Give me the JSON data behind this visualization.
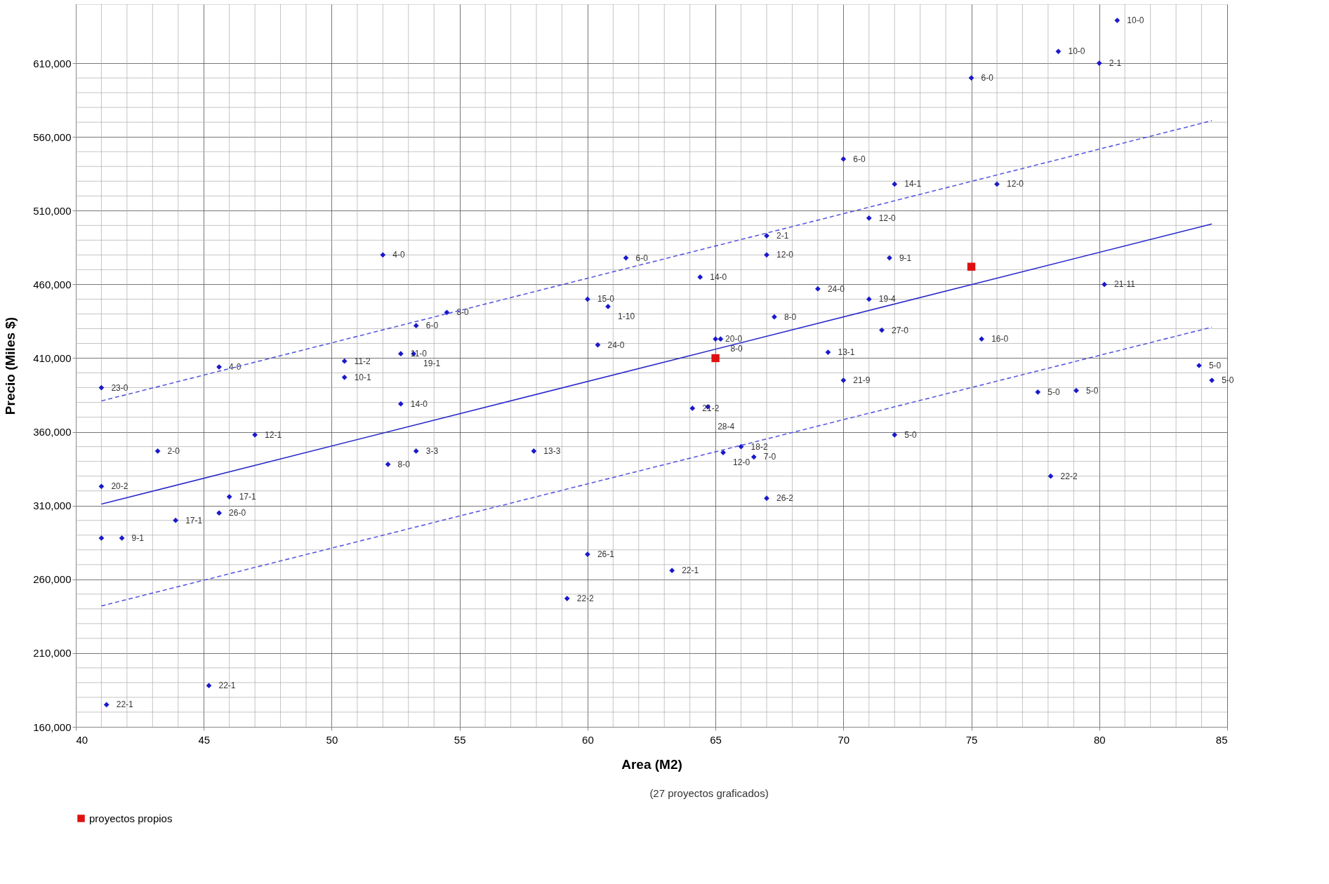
{
  "chart_data": {
    "type": "scatter",
    "xlabel": "Area (M2)",
    "ylabel": "Precio (Miles $)",
    "annotations": [
      "(27 proyectos graficados)"
    ],
    "xlim": [
      40,
      85
    ],
    "xticks": [
      40,
      45,
      50,
      55,
      60,
      65,
      70,
      75,
      80,
      85
    ],
    "ylim": [
      160000,
      650000
    ],
    "yticks": [
      {
        "value": 160000,
        "label": "160,000"
      },
      {
        "value": 210000,
        "label": "210,000"
      },
      {
        "value": 260000,
        "label": "260,000"
      },
      {
        "value": 310000,
        "label": "310,000"
      },
      {
        "value": 360000,
        "label": "360,000"
      },
      {
        "value": 410000,
        "label": "410,000"
      },
      {
        "value": 460000,
        "label": "460,000"
      },
      {
        "value": 510000,
        "label": "510,000"
      },
      {
        "value": 560000,
        "label": "560,000"
      },
      {
        "value": 610000,
        "label": "610,000"
      }
    ],
    "grid": true,
    "legend": "bottom left",
    "series": [
      {
        "type": "scatter",
        "color": "#1a1acc",
        "marker": "diamond",
        "x": [
          80.7,
          78.4,
          80.0,
          75.0,
          70.0,
          72.0,
          76.0,
          71.0,
          67.0,
          67.0,
          52.0,
          61.5,
          71.8,
          64.4,
          69.0,
          80.2,
          60.0,
          71.0,
          60.8,
          54.5,
          67.3,
          53.3,
          71.5,
          65.0,
          65.2,
          75.4,
          60.4,
          52.7,
          53.2,
          69.4,
          50.5,
          45.6,
          83.9,
          50.5,
          84.4,
          70.0,
          41.0,
          77.6,
          79.1,
          52.7,
          64.1,
          64.7,
          47.0,
          72.0,
          43.2,
          53.3,
          57.9,
          66.0,
          65.3,
          66.5,
          52.2,
          78.1,
          41.0,
          46.0,
          67.0,
          45.6,
          43.9,
          41.0,
          41.8,
          60.0,
          63.3,
          59.2,
          45.2,
          41.2
        ],
        "values": [
          639000,
          618000,
          610000,
          600000,
          545000,
          528000,
          528000,
          505000,
          493000,
          480000,
          480000,
          478000,
          478000,
          465000,
          457000,
          460000,
          450000,
          450000,
          445000,
          441000,
          438000,
          432000,
          429000,
          423000,
          423000,
          423000,
          419000,
          413000,
          413000,
          414000,
          408000,
          404000,
          405000,
          397000,
          395000,
          395000,
          390000,
          387000,
          388000,
          379000,
          376000,
          377000,
          358000,
          358000,
          347000,
          347000,
          347000,
          350000,
          346000,
          343000,
          338000,
          330000,
          323000,
          316000,
          315000,
          305000,
          300000,
          288000,
          288000,
          277000,
          266000,
          247000,
          188000,
          175000
        ],
        "value_labels": [
          "10-0",
          "10-0",
          "2-1",
          "6-0",
          "6-0",
          "14-1",
          "12-0",
          "12-0",
          "2-1",
          "12-0",
          "4-0",
          "6-0",
          "9-1",
          "14-0",
          "24-0",
          "21-11",
          "15-0",
          "19-4",
          "1-10",
          "8-0",
          "8-0",
          "6-0",
          "27-0",
          "20-0",
          "8-0",
          "16-0",
          "24-0",
          "11-0",
          "19-1",
          "13-1",
          "11-2",
          "4-0",
          "5-0",
          "10-1",
          "5-0",
          "21-9",
          "23-0",
          "5-0",
          "5-0",
          "14-0",
          "21-2",
          "28-4",
          "12-1",
          "5-0",
          "2-0",
          "3-3",
          "13-3",
          "18-2",
          "12-0",
          "7-0",
          "8-0",
          "22-2",
          "20-2",
          "17-1",
          "26-2",
          "26-0",
          "17-1",
          null,
          "9-1",
          "26-1",
          "22-1",
          "22-2",
          "22-1",
          "22-1"
        ]
      },
      {
        "type": "scatter",
        "name": "proyectos propios",
        "color": "#dd1111",
        "marker": "square",
        "x": [
          65,
          75
        ],
        "values": [
          410000,
          472000
        ]
      },
      {
        "type": "line",
        "color": "#2a2acc",
        "line_style": "solid",
        "x": [
          41,
          84.4
        ],
        "values": [
          311000,
          501000
        ]
      },
      {
        "type": "line",
        "color": "#5a5ae0",
        "line_style": "dashed",
        "x": [
          41,
          84.4
        ],
        "values": [
          381000,
          571000
        ]
      },
      {
        "type": "line",
        "color": "#5a5ae0",
        "line_style": "dashed",
        "x": [
          41,
          84.4
        ],
        "values": [
          242000,
          431000
        ]
      }
    ]
  }
}
